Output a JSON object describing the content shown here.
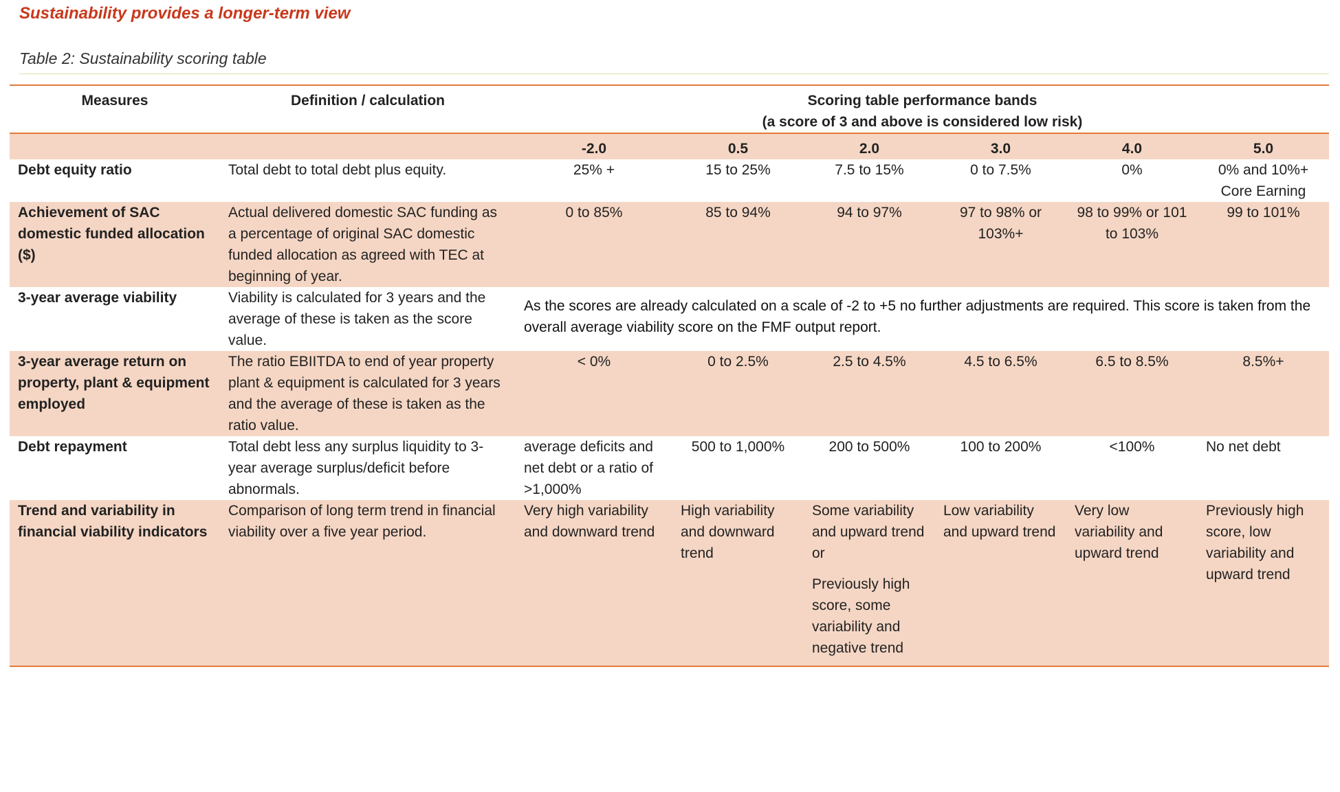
{
  "heading": "Sustainability provides a longer-term view",
  "caption": "Table 2: Sustainability scoring table",
  "table": {
    "col_measures": "Measures",
    "col_definition": "Definition / calculation",
    "col_bands_line1": "Scoring table performance bands",
    "col_bands_line2": "(a score of 3 and above is considered low risk)",
    "bands": [
      "-2.0",
      "0.5",
      "2.0",
      "3.0",
      "4.0",
      "5.0"
    ],
    "rows": [
      {
        "measure": "Debt equity ratio",
        "definition": "Total debt to total debt plus equity.",
        "scores": [
          "25% +",
          "15 to 25%",
          "7.5 to 15%",
          "0 to 7.5%",
          "0%",
          "0% and 10%+ Core Earning"
        ]
      },
      {
        "measure": "Achievement of SAC domestic funded allocation ($)",
        "definition": "Actual delivered domestic SAC funding as a percentage of original SAC domestic funded allocation as agreed with TEC at beginning of year.",
        "scores": [
          "0 to 85%",
          "85 to 94%",
          "94 to 97%",
          "97 to 98% or 103%+",
          "98 to 99% or 101 to 103%",
          "99 to 101%"
        ]
      },
      {
        "measure": "3-year average viability",
        "definition": "Viability is calculated for 3 years and the average of these is taken as the score value.",
        "note": "As the scores are already calculated on a scale of -2 to +5 no further adjustments are required.  This score is taken from the overall average viability score on the FMF output report."
      },
      {
        "measure": "3-year average return on property, plant & equipment employed",
        "definition": "The ratio EBIITDA to end of year property plant & equipment is calculated for 3 years and the average of these is taken as the ratio value.",
        "scores": [
          "< 0%",
          "0 to 2.5%",
          "2.5 to 4.5%",
          "4.5 to 6.5%",
          "6.5 to 8.5%",
          "8.5%+"
        ]
      },
      {
        "measure": "Debt repayment",
        "definition": "Total debt less any surplus liquidity to 3-year average surplus/deficit before abnormals.",
        "scores": [
          "average deficits and net debt or a ratio of >1,000%",
          "500 to 1,000%",
          "200 to 500%",
          "100 to 200%",
          "<100%",
          "No net debt"
        ]
      },
      {
        "measure": "Trend and variability in financial viability indicators",
        "definition": "Comparison of long term trend in financial viability over a five year period.",
        "scores": [
          "Very high variability and downward trend",
          "High variability and downward trend",
          "Some variability and upward trend or",
          "Low variability and upward trend",
          "Very low variability and upward trend",
          "Previously high score, low variability and upward trend"
        ],
        "score_2_extra": "Previously high score, some variability and negative trend"
      }
    ]
  }
}
